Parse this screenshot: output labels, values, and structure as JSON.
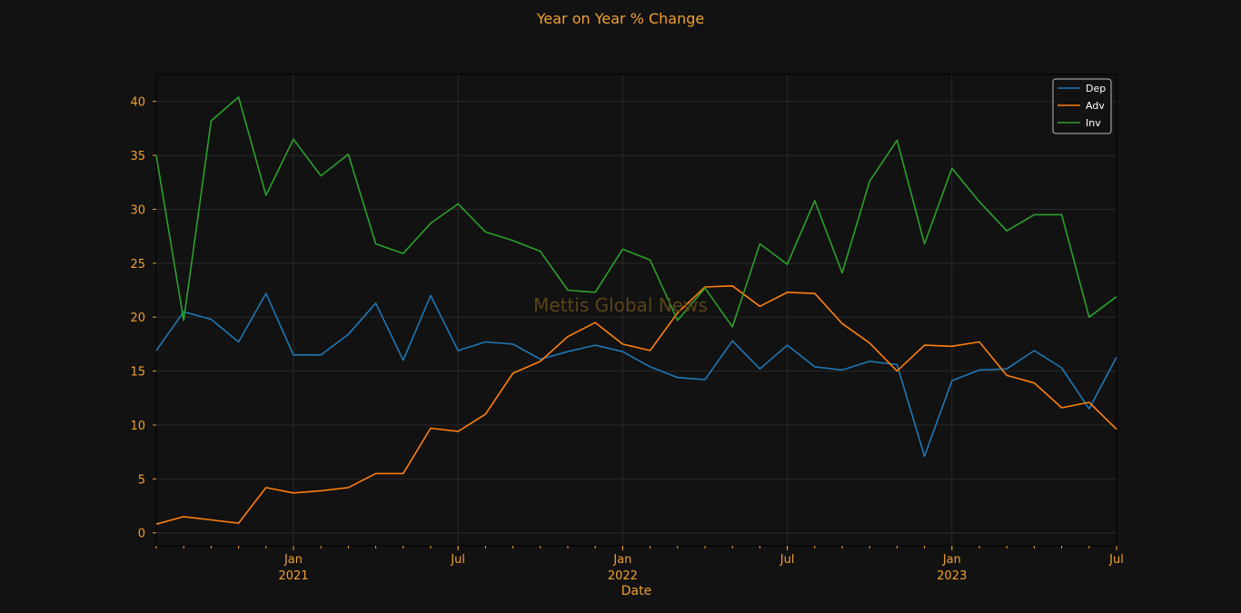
{
  "chart_data": {
    "type": "line",
    "title": "Year on Year % Change",
    "xlabel": "Date",
    "ylabel": "",
    "watermark": "Mettis Global News",
    "x": [
      "2020-08",
      "2020-09",
      "2020-10",
      "2020-11",
      "2020-12",
      "2021-01",
      "2021-02",
      "2021-03",
      "2021-04",
      "2021-05",
      "2021-06",
      "2021-07",
      "2021-08",
      "2021-09",
      "2021-10",
      "2021-11",
      "2021-12",
      "2022-01",
      "2022-02",
      "2022-03",
      "2022-04",
      "2022-05",
      "2022-06",
      "2022-07",
      "2022-08",
      "2022-09",
      "2022-10",
      "2022-11",
      "2022-12",
      "2023-01",
      "2023-02",
      "2023-03",
      "2023-04",
      "2023-05",
      "2023-06",
      "2023-07"
    ],
    "xlim": [
      "2020-08",
      "2023-07"
    ],
    "ylim": [
      -1.2,
      42.5
    ],
    "yticks": [
      0,
      5,
      10,
      15,
      20,
      25,
      30,
      35,
      40
    ],
    "xticks": [
      {
        "date": "2021-01",
        "label": "Jan",
        "year": "2021"
      },
      {
        "date": "2021-07",
        "label": "Jul",
        "year": ""
      },
      {
        "date": "2022-01",
        "label": "Jan",
        "year": "2022"
      },
      {
        "date": "2022-07",
        "label": "Jul",
        "year": ""
      },
      {
        "date": "2023-01",
        "label": "Jan",
        "year": "2023"
      },
      {
        "date": "2023-07",
        "label": "Jul",
        "year": ""
      }
    ],
    "grid": true,
    "legend_position": "top-right",
    "series": [
      {
        "name": "Dep",
        "color": "#1f77b4",
        "values": [
          16.9,
          20.5,
          19.8,
          17.7,
          22.2,
          16.5,
          16.5,
          18.4,
          21.3,
          16.0,
          22.0,
          16.9,
          17.7,
          17.5,
          16.1,
          16.8,
          17.4,
          16.8,
          15.4,
          14.4,
          14.2,
          17.8,
          15.2,
          17.4,
          15.4,
          15.1,
          15.9,
          15.6,
          7.1,
          14.1,
          15.1,
          15.2,
          16.9,
          15.3,
          11.5,
          16.3
        ]
      },
      {
        "name": "Adv",
        "color": "#ff7f0e",
        "values": [
          0.8,
          1.5,
          1.2,
          0.9,
          4.2,
          3.7,
          3.9,
          4.2,
          5.5,
          5.5,
          9.7,
          9.4,
          11.0,
          14.8,
          15.9,
          18.2,
          19.5,
          17.5,
          16.9,
          20.4,
          22.8,
          22.9,
          21.0,
          22.3,
          22.2,
          19.4,
          17.6,
          15.0,
          17.4,
          17.3,
          17.7,
          14.6,
          13.9,
          11.6,
          12.1,
          9.6
        ]
      },
      {
        "name": "Inv",
        "color": "#2ca02c",
        "values": [
          35.0,
          19.7,
          38.2,
          40.4,
          31.3,
          36.5,
          33.1,
          35.1,
          26.8,
          25.9,
          28.7,
          30.5,
          27.9,
          27.1,
          26.1,
          22.5,
          22.3,
          26.3,
          25.3,
          19.7,
          22.7,
          19.1,
          26.8,
          24.9,
          30.8,
          24.1,
          32.6,
          36.4,
          26.8,
          33.8,
          30.7,
          28.0,
          29.5,
          29.5,
          20.0,
          21.9
        ]
      }
    ]
  },
  "colors": {
    "background": "#121212",
    "axis_text": "#f0a030",
    "grid": "#2a2a2a",
    "legend_bg": "#121212",
    "legend_text": "#ffffff"
  }
}
